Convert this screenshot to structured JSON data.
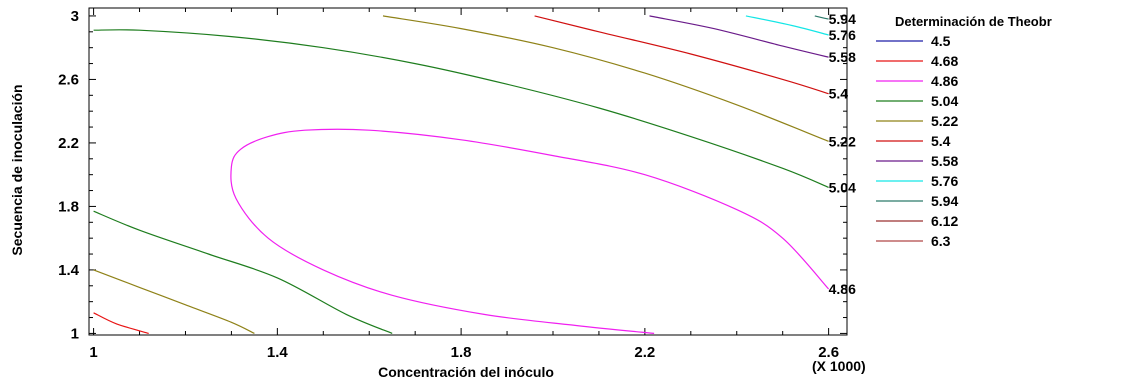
{
  "chart_data": {
    "type": "contour",
    "xlabel": "Concentración del inóculo",
    "ylabel": "Secuencia de inoculación",
    "x_multiplier_label": "(X 1000)",
    "xlim": [
      0.99,
      2.64
    ],
    "ylim": [
      0.99,
      3.05
    ],
    "x_ticks": [
      "1",
      "1.4",
      "1.8",
      "2.2",
      "2.6"
    ],
    "y_ticks": [
      "1",
      "1.4",
      "1.8",
      "2.2",
      "2.6",
      "3"
    ],
    "legend": {
      "title": "Determinación de Theobr",
      "entries": [
        {
          "label": "4.5",
          "color": "#1f1fa8"
        },
        {
          "label": "4.68",
          "color": "#e81414"
        },
        {
          "label": "4.86",
          "color": "#f020f0"
        },
        {
          "label": "5.04",
          "color": "#1e7d1e"
        },
        {
          "label": "5.22",
          "color": "#8f8218"
        },
        {
          "label": "5.4",
          "color": "#d01010"
        },
        {
          "label": "5.58",
          "color": "#6a1b8a"
        },
        {
          "label": "5.76",
          "color": "#14e6e6"
        },
        {
          "label": "5.94",
          "color": "#2c7a6a"
        },
        {
          "label": "6.12",
          "color": "#9a3030"
        },
        {
          "label": "6.3",
          "color": "#b04848"
        }
      ]
    },
    "contours": [
      {
        "level": "4.68",
        "color": "#e81414",
        "points": [
          [
            1.0,
            1.13
          ],
          [
            1.05,
            1.06
          ],
          [
            1.12,
            1.0
          ]
        ]
      },
      {
        "level": "4.86",
        "color": "#f020f0",
        "label": "4.86",
        "points": [
          [
            2.22,
            1.0
          ],
          [
            2.05,
            1.05
          ],
          [
            1.85,
            1.12
          ],
          [
            1.65,
            1.24
          ],
          [
            1.5,
            1.4
          ],
          [
            1.38,
            1.6
          ],
          [
            1.31,
            1.85
          ],
          [
            1.3,
            2.05
          ],
          [
            1.32,
            2.16
          ],
          [
            1.38,
            2.24
          ],
          [
            1.46,
            2.28
          ],
          [
            1.6,
            2.28
          ],
          [
            1.8,
            2.22
          ],
          [
            2.0,
            2.12
          ],
          [
            2.2,
            2.0
          ],
          [
            2.4,
            1.78
          ],
          [
            2.5,
            1.6
          ],
          [
            2.6,
            1.28
          ]
        ]
      },
      {
        "level": "5.04",
        "color": "#1e7d1e",
        "points": [
          [
            1.0,
            1.77
          ],
          [
            1.1,
            1.65
          ],
          [
            1.25,
            1.5
          ],
          [
            1.4,
            1.35
          ],
          [
            1.55,
            1.12
          ],
          [
            1.65,
            1.0
          ]
        ]
      },
      {
        "level": "5.04",
        "color": "#1e7d1e",
        "label": "5.04",
        "points": [
          [
            1.0,
            2.91
          ],
          [
            1.1,
            2.91
          ],
          [
            1.3,
            2.87
          ],
          [
            1.5,
            2.8
          ],
          [
            1.7,
            2.7
          ],
          [
            1.9,
            2.57
          ],
          [
            2.1,
            2.42
          ],
          [
            2.3,
            2.24
          ],
          [
            2.5,
            2.04
          ],
          [
            2.6,
            1.92
          ]
        ]
      },
      {
        "level": "5.22",
        "color": "#8f8218",
        "points": [
          [
            1.0,
            1.4
          ],
          [
            1.1,
            1.29
          ],
          [
            1.2,
            1.18
          ],
          [
            1.3,
            1.07
          ],
          [
            1.35,
            1.0
          ]
        ]
      },
      {
        "level": "5.22",
        "color": "#8f8218",
        "label": "5.22",
        "points": [
          [
            1.63,
            3.0
          ],
          [
            1.8,
            2.92
          ],
          [
            2.0,
            2.8
          ],
          [
            2.2,
            2.64
          ],
          [
            2.4,
            2.44
          ],
          [
            2.6,
            2.21
          ]
        ]
      },
      {
        "level": "5.4",
        "color": "#d01010",
        "label": "5.4",
        "points": [
          [
            1.96,
            3.0
          ],
          [
            2.1,
            2.9
          ],
          [
            2.3,
            2.76
          ],
          [
            2.5,
            2.6
          ],
          [
            2.6,
            2.51
          ]
        ]
      },
      {
        "level": "5.58",
        "color": "#6a1b8a",
        "label": "5.58",
        "points": [
          [
            2.21,
            3.0
          ],
          [
            2.35,
            2.92
          ],
          [
            2.5,
            2.81
          ],
          [
            2.6,
            2.74
          ]
        ]
      },
      {
        "level": "5.76",
        "color": "#14e6e6",
        "label": "5.76",
        "points": [
          [
            2.42,
            3.0
          ],
          [
            2.52,
            2.94
          ],
          [
            2.6,
            2.88
          ]
        ]
      },
      {
        "level": "5.94",
        "color": "#2c7a6a",
        "label": "5.94",
        "points": [
          [
            2.57,
            3.0
          ],
          [
            2.6,
            2.98
          ]
        ]
      }
    ]
  }
}
